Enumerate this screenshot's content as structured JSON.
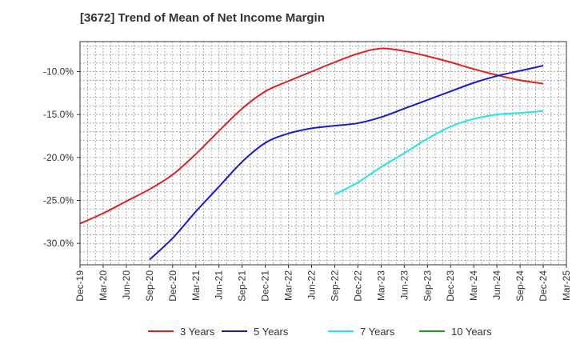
{
  "chart_data": {
    "type": "line",
    "title": "[3672]  Trend of Mean of Net Income Margin",
    "xlabel": "",
    "ylabel": "",
    "x_ticks": [
      "Dec-19",
      "Mar-20",
      "Jun-20",
      "Sep-20",
      "Dec-20",
      "Mar-21",
      "Jun-21",
      "Sep-21",
      "Dec-21",
      "Mar-22",
      "Jun-22",
      "Sep-22",
      "Dec-22",
      "Mar-23",
      "Jun-23",
      "Sep-23",
      "Dec-23",
      "Mar-24",
      "Jun-24",
      "Sep-24",
      "Dec-24",
      "Mar-25"
    ],
    "y_ticks": [
      "-10.0%",
      "-15.0%",
      "-20.0%",
      "-25.0%",
      "-30.0%"
    ],
    "y_tick_values": [
      -10,
      -15,
      -20,
      -25,
      -30
    ],
    "ylim": [
      -32.5,
      -6.5
    ],
    "grid": true,
    "legend_position": "bottom",
    "series": [
      {
        "name": "3 Years",
        "color": "#dd2222",
        "values": [
          -27.7,
          -26.5,
          -25.1,
          -23.7,
          -22.0,
          -19.6,
          -16.9,
          -14.3,
          -12.3,
          -11.1,
          -10.0,
          -8.9,
          -7.9,
          -7.3,
          -7.6,
          -8.2,
          -8.9,
          -9.7,
          -10.4,
          -11.0,
          -11.4,
          null
        ]
      },
      {
        "name": "5 Years",
        "color": "#1a1acc",
        "values": [
          null,
          null,
          null,
          -31.9,
          -29.4,
          -26.3,
          -23.4,
          -20.5,
          -18.3,
          -17.2,
          -16.6,
          -16.3,
          -16.0,
          -15.3,
          -14.3,
          -13.3,
          -12.3,
          -11.3,
          -10.5,
          -9.9,
          -9.3,
          null
        ]
      },
      {
        "name": "7 Years",
        "color": "#22e5e5",
        "values": [
          null,
          null,
          null,
          null,
          null,
          null,
          null,
          null,
          null,
          null,
          null,
          -24.3,
          -22.9,
          -21.1,
          -19.5,
          -17.8,
          -16.4,
          -15.5,
          -15.0,
          -14.8,
          -14.6,
          null
        ]
      },
      {
        "name": "10 Years",
        "color": "#229922",
        "values": [
          null,
          null,
          null,
          null,
          null,
          null,
          null,
          null,
          null,
          null,
          null,
          null,
          null,
          null,
          null,
          null,
          null,
          null,
          null,
          null,
          null,
          null
        ]
      }
    ]
  }
}
